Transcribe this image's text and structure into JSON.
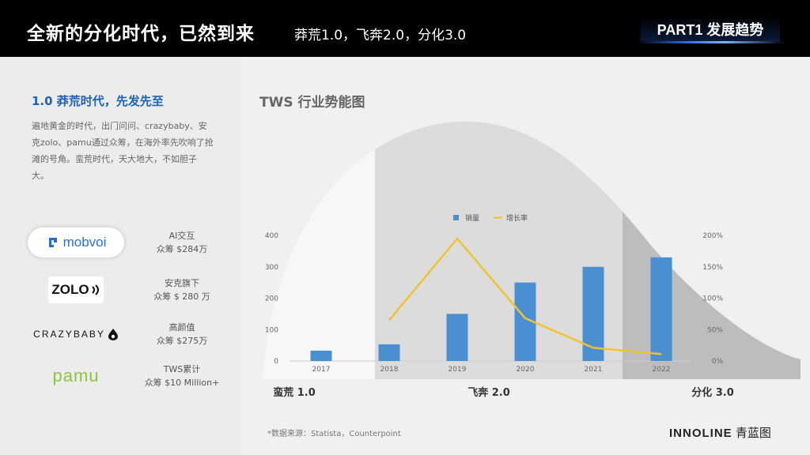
{
  "header": {
    "title": "全新的分化时代，已然到来",
    "subtitle": "莽荒1.0，飞奔2.0，分化3.0",
    "part_label": "PART1 发展趋势"
  },
  "left": {
    "section_title": "1.0 莽荒时代，先发先至",
    "paragraph": "遍地黄金的时代，出门问问、crazybaby、安克zolo、pamu通过众筹，在海外率先吹响了抢滩的号角。蛮荒时代，天大地大，不如胆子大。",
    "brands": [
      {
        "logo": "mobvoi",
        "line1": "AI交互",
        "line2": "众筹 $284万"
      },
      {
        "logo": "ZOLO",
        "line1": "安克旗下",
        "line2": "众筹 $ 280 万"
      },
      {
        "logo": "CRAZYBABY",
        "line1": "高颜值",
        "line2": "众筹 $275万"
      },
      {
        "logo": "pamu",
        "line1": "TWS累计",
        "line2": "众筹 $10 Million+"
      }
    ]
  },
  "chart": {
    "title": "TWS 行业势能图",
    "phase_labels": [
      "蛮荒 1.0",
      "飞奔 2.0",
      "分化 3.0"
    ]
  },
  "chart_data": {
    "type": "bar",
    "categories": [
      "2017",
      "2018",
      "2019",
      "2020",
      "2021",
      "2022"
    ],
    "series": [
      {
        "name": "销量",
        "kind": "bar",
        "axis": "left",
        "color": "#4a90d0",
        "values": [
          33,
          53,
          150,
          250,
          300,
          330
        ]
      },
      {
        "name": "增长率",
        "kind": "line",
        "axis": "right",
        "color": "#f2c12e",
        "values": [
          null,
          65,
          195,
          68,
          21,
          11
        ]
      }
    ],
    "y_left": {
      "ticks": [
        "0",
        "100",
        "200",
        "300",
        "400"
      ],
      "range": [
        0,
        400
      ]
    },
    "y_right": {
      "ticks": [
        "0%",
        "50%",
        "100%",
        "150%",
        "200%"
      ],
      "range": [
        0,
        200
      ]
    },
    "legend": {
      "position": "top-center"
    },
    "grid": false
  },
  "footer": {
    "source": "*数据来源：Statista，Counterpoint",
    "brand_bold": "INNOLINE",
    "brand_cn": "青蓝图"
  }
}
